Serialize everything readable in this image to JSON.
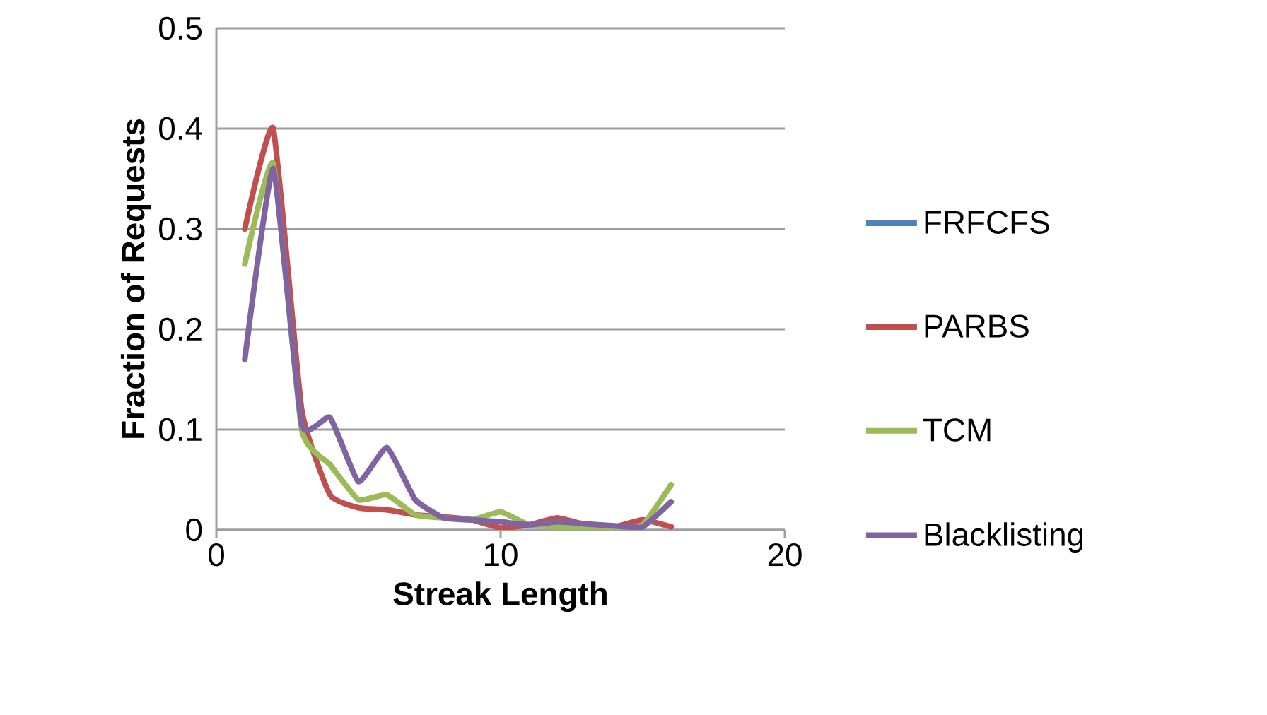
{
  "chart_data": {
    "type": "line",
    "xlabel": "Streak Length",
    "ylabel": "Fraction of Requests",
    "x": [
      1,
      2,
      3,
      4,
      5,
      6,
      7,
      8,
      9,
      10,
      11,
      12,
      13,
      14,
      15,
      16
    ],
    "series": [
      {
        "name": "FRFCFS",
        "color": "#4f81bd",
        "values": [
          null,
          null,
          null,
          null,
          null,
          null,
          null,
          null,
          null,
          null,
          null,
          null,
          null,
          null,
          null,
          null
        ]
      },
      {
        "name": "PARBS",
        "color": "#c0504d",
        "values": [
          0.3,
          0.4,
          0.12,
          0.035,
          0.022,
          0.02,
          0.015,
          0.013,
          0.01,
          0.002,
          0.005,
          0.012,
          0.005,
          0.003,
          0.01,
          0.003
        ]
      },
      {
        "name": "TCM",
        "color": "#9bbb59",
        "values": [
          0.265,
          0.365,
          0.1,
          0.065,
          0.03,
          0.035,
          0.015,
          0.012,
          0.01,
          0.018,
          0.005,
          0.003,
          0.002,
          0.003,
          0.005,
          0.045
        ]
      },
      {
        "name": "Blacklisting",
        "color": "#8064a2",
        "values": [
          0.17,
          0.36,
          0.105,
          0.112,
          0.048,
          0.082,
          0.03,
          0.012,
          0.01,
          0.008,
          0.005,
          0.008,
          0.006,
          0.004,
          0.003,
          0.028
        ]
      }
    ],
    "xlim": [
      0,
      20
    ],
    "xticks": [
      0,
      10,
      20
    ],
    "ylim": [
      0,
      0.5
    ],
    "yticks": [
      0,
      0.1,
      0.2,
      0.3,
      0.4,
      0.5
    ],
    "grid": "y",
    "legend": "right",
    "marker": "none",
    "line_style": "solid"
  }
}
